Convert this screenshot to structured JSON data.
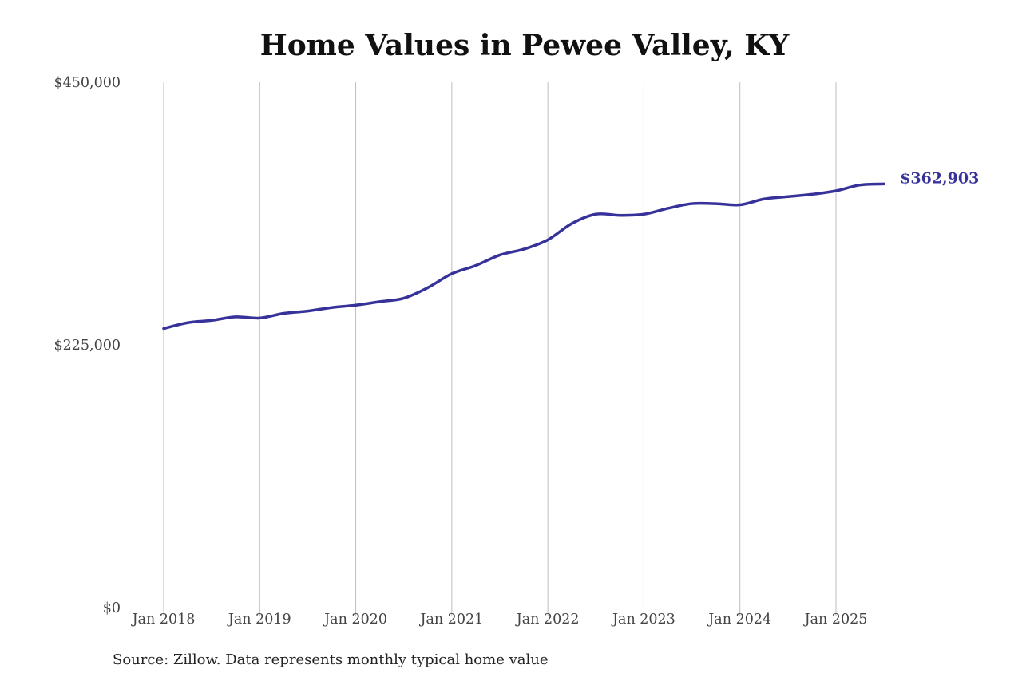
{
  "chart_data": {
    "type": "line",
    "title": "Home Values in Pewee Valley, KY",
    "xlabel": "",
    "ylabel": "",
    "ylim": [
      0,
      450000
    ],
    "xlim": [
      "2018-01",
      "2025-07"
    ],
    "y_ticks": [
      {
        "value": 0,
        "label": "$0"
      },
      {
        "value": 225000,
        "label": "$225,000"
      },
      {
        "value": 450000,
        "label": "$450,000"
      }
    ],
    "x_ticks": [
      {
        "value": "2018-01",
        "label": "Jan 2018"
      },
      {
        "value": "2019-01",
        "label": "Jan 2019"
      },
      {
        "value": "2020-01",
        "label": "Jan 2020"
      },
      {
        "value": "2021-01",
        "label": "Jan 2021"
      },
      {
        "value": "2022-01",
        "label": "Jan 2022"
      },
      {
        "value": "2023-01",
        "label": "Jan 2023"
      },
      {
        "value": "2024-01",
        "label": "Jan 2024"
      },
      {
        "value": "2025-01",
        "label": "Jan 2025"
      }
    ],
    "grid": "vertical",
    "line_color": "#37329a",
    "end_label": "$362,903",
    "series": [
      {
        "points": [
          {
            "x": "2018-01",
            "y": 239000
          },
          {
            "x": "2018-04",
            "y": 244000
          },
          {
            "x": "2018-07",
            "y": 246000
          },
          {
            "x": "2018-10",
            "y": 249000
          },
          {
            "x": "2019-01",
            "y": 248000
          },
          {
            "x": "2019-04",
            "y": 252000
          },
          {
            "x": "2019-07",
            "y": 254000
          },
          {
            "x": "2019-10",
            "y": 257000
          },
          {
            "x": "2020-01",
            "y": 259000
          },
          {
            "x": "2020-04",
            "y": 262000
          },
          {
            "x": "2020-07",
            "y": 265000
          },
          {
            "x": "2020-10",
            "y": 274000
          },
          {
            "x": "2021-01",
            "y": 286000
          },
          {
            "x": "2021-04",
            "y": 293000
          },
          {
            "x": "2021-07",
            "y": 302000
          },
          {
            "x": "2021-10",
            "y": 307000
          },
          {
            "x": "2022-01",
            "y": 315000
          },
          {
            "x": "2022-04",
            "y": 329000
          },
          {
            "x": "2022-07",
            "y": 337000
          },
          {
            "x": "2022-10",
            "y": 336000
          },
          {
            "x": "2023-01",
            "y": 337000
          },
          {
            "x": "2023-04",
            "y": 342000
          },
          {
            "x": "2023-07",
            "y": 346000
          },
          {
            "x": "2023-10",
            "y": 346000
          },
          {
            "x": "2024-01",
            "y": 345000
          },
          {
            "x": "2024-04",
            "y": 350000
          },
          {
            "x": "2024-07",
            "y": 352000
          },
          {
            "x": "2024-10",
            "y": 354000
          },
          {
            "x": "2025-01",
            "y": 357000
          },
          {
            "x": "2025-04",
            "y": 362000
          },
          {
            "x": "2025-07",
            "y": 362903
          }
        ]
      }
    ]
  },
  "source_note": "Source: Zillow. Data represents monthly typical home value"
}
